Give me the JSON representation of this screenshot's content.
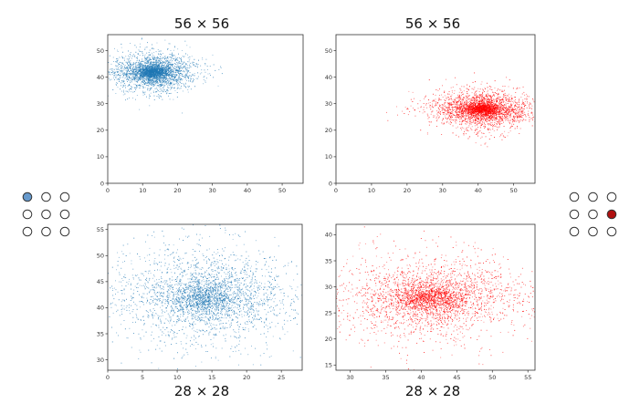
{
  "charts": [
    {
      "title": "56 × 56"
    },
    {
      "title": "56 × 56"
    },
    {
      "title": "28 × 28"
    },
    {
      "title": "28 × 28"
    }
  ],
  "grids": {
    "left": {
      "rows": 3,
      "cols": 3,
      "highlight": [
        0,
        0
      ],
      "highlight_color": "#6699cc"
    },
    "right": {
      "rows": 3,
      "cols": 3,
      "highlight": [
        1,
        2
      ],
      "highlight_color": "#b01010"
    }
  },
  "chart_data": [
    {
      "type": "scatter",
      "title": "56 × 56",
      "color": "#1f77b4",
      "xlim": [
        0,
        56
      ],
      "ylim": [
        0,
        56
      ],
      "xticks": [
        0,
        10,
        20,
        30,
        40,
        50
      ],
      "yticks": [
        0,
        10,
        20,
        30,
        40,
        50
      ],
      "cluster": {
        "center": [
          13,
          42
        ],
        "spread": [
          5,
          4.5
        ]
      }
    },
    {
      "type": "scatter",
      "title": "56 × 56",
      "color": "#ff0000",
      "xlim": [
        0,
        56
      ],
      "ylim": [
        0,
        56
      ],
      "xticks": [
        0,
        10,
        20,
        30,
        40,
        50
      ],
      "yticks": [
        0,
        10,
        20,
        30,
        40,
        50
      ],
      "cluster": {
        "center": [
          41,
          28
        ],
        "spread": [
          6,
          4.5
        ]
      }
    },
    {
      "type": "scatter",
      "title": "28 × 28",
      "color": "#1f77b4",
      "xlim": [
        0,
        28
      ],
      "ylim": [
        28,
        56
      ],
      "xticks": [
        0,
        5,
        10,
        15,
        20,
        25
      ],
      "yticks": [
        30,
        35,
        40,
        45,
        50,
        55
      ],
      "cluster": {
        "center": [
          14,
          42
        ],
        "spread": [
          6,
          6
        ]
      }
    },
    {
      "type": "scatter",
      "title": "28 × 28",
      "color": "#ff0000",
      "xlim": [
        28,
        56
      ],
      "ylim": [
        14,
        42
      ],
      "xticks": [
        30,
        35,
        40,
        45,
        50,
        55
      ],
      "yticks": [
        15,
        20,
        25,
        30,
        35,
        40
      ],
      "cluster": {
        "center": [
          41,
          28
        ],
        "spread": [
          6,
          5
        ]
      }
    }
  ]
}
